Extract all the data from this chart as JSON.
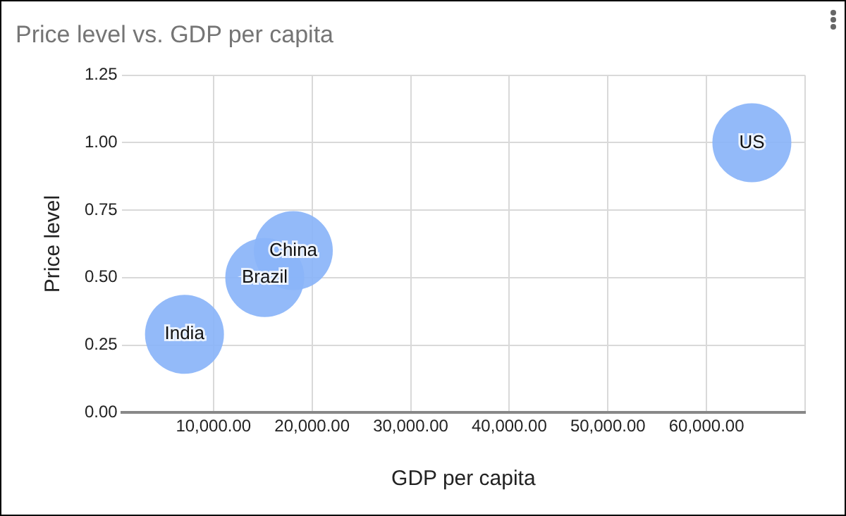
{
  "chart_data": {
    "type": "bubble",
    "title": "Price level vs. GDP per capita",
    "xlabel": "GDP per capita",
    "ylabel": "Price level",
    "series": [
      {
        "name": "India",
        "color": "#8ab4f8",
        "x": [
          7060
        ],
        "values": [
          0.29
        ],
        "sizes": [
          1
        ]
      },
      {
        "name": "Brazil",
        "color": "#8ab4f8",
        "x": [
          15200
        ],
        "values": [
          0.5
        ],
        "sizes": [
          1
        ]
      },
      {
        "name": "China",
        "color": "#8ab4f8",
        "x": [
          18100
        ],
        "values": [
          0.6
        ],
        "sizes": [
          1
        ]
      },
      {
        "name": "US",
        "color": "#8ab4f8",
        "x": [
          64600
        ],
        "values": [
          1.0
        ],
        "sizes": [
          1
        ]
      }
    ],
    "xlim": [
      700,
      70000
    ],
    "xticks": [
      {
        "value": 10000,
        "label": "10,000.00"
      },
      {
        "value": 20000,
        "label": "20,000.00"
      },
      {
        "value": 30000,
        "label": "30,000.00"
      },
      {
        "value": 40000,
        "label": "40,000.00"
      },
      {
        "value": 50000,
        "label": "50,000.00"
      },
      {
        "value": 60000,
        "label": "60,000.00"
      },
      {
        "value": 70000,
        "label": null
      }
    ],
    "ylim": [
      0,
      1.25
    ],
    "yticks": [
      {
        "value": 0,
        "label": "0.00"
      },
      {
        "value": 0.25,
        "label": "0.25"
      },
      {
        "value": 0.5,
        "label": "0.50"
      },
      {
        "value": 0.75,
        "label": "0.75"
      },
      {
        "value": 1.0,
        "label": "1.00"
      },
      {
        "value": 1.25,
        "label": "1.25"
      }
    ],
    "grid": true,
    "legend": false
  }
}
